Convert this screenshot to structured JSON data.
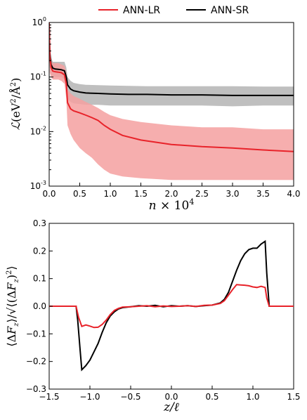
{
  "legend": {
    "placement": "top-center",
    "items": [
      {
        "label": "ANN-LR",
        "color": "#e8232a"
      },
      {
        "label": "ANN-SR",
        "color": "#000000"
      }
    ]
  },
  "chart_data": [
    {
      "type": "line",
      "title": "",
      "xlabel": "n × 10^4",
      "ylabel": "ℒ(eV²/Å²)",
      "xlim": [
        0.0,
        4.0
      ],
      "ylim": [
        0.001,
        1
      ],
      "yscale": "log",
      "xticks": [
        "0.0",
        "0.5",
        "1.0",
        "1.5",
        "2.0",
        "2.5",
        "3.0",
        "3.5",
        "4.0"
      ],
      "yticks": [
        "10^-3",
        "10^-2",
        "10^-1",
        "10^0"
      ],
      "grid": false,
      "series": [
        {
          "name": "ANN-SR",
          "color": "#000000",
          "band_color": "#b8b8b8",
          "x": [
            0.0,
            0.01,
            0.03,
            0.06,
            0.1,
            0.15,
            0.2,
            0.25,
            0.28,
            0.3,
            0.35,
            0.4,
            0.5,
            0.6,
            0.8,
            1.0,
            1.3,
            1.6,
            2.0,
            2.5,
            3.0,
            3.5,
            4.0
          ],
          "values": [
            1.0,
            0.28,
            0.17,
            0.145,
            0.14,
            0.138,
            0.136,
            0.13,
            0.1,
            0.072,
            0.06,
            0.056,
            0.053,
            0.051,
            0.05,
            0.049,
            0.048,
            0.048,
            0.047,
            0.047,
            0.046,
            0.046,
            0.046
          ],
          "band_low": [
            0.9,
            0.16,
            0.11,
            0.1,
            0.1,
            0.1,
            0.1,
            0.09,
            0.06,
            0.04,
            0.035,
            0.033,
            0.032,
            0.031,
            0.031,
            0.03,
            0.03,
            0.03,
            0.03,
            0.03,
            0.029,
            0.03,
            0.03
          ],
          "band_high": [
            1.0,
            0.42,
            0.23,
            0.19,
            0.19,
            0.19,
            0.19,
            0.19,
            0.15,
            0.1,
            0.085,
            0.078,
            0.074,
            0.072,
            0.071,
            0.07,
            0.069,
            0.068,
            0.068,
            0.068,
            0.068,
            0.067,
            0.067
          ]
        },
        {
          "name": "ANN-LR",
          "color": "#e8232a",
          "band_color": "#f4a0a0",
          "x": [
            0.0,
            0.01,
            0.03,
            0.06,
            0.1,
            0.15,
            0.2,
            0.25,
            0.28,
            0.3,
            0.35,
            0.4,
            0.5,
            0.6,
            0.7,
            0.8,
            0.9,
            1.0,
            1.2,
            1.5,
            2.0,
            2.5,
            3.0,
            3.5,
            4.0
          ],
          "values": [
            1.0,
            0.24,
            0.15,
            0.128,
            0.125,
            0.123,
            0.12,
            0.11,
            0.075,
            0.034,
            0.026,
            0.024,
            0.022,
            0.02,
            0.018,
            0.016,
            0.013,
            0.011,
            0.0085,
            0.007,
            0.0058,
            0.0053,
            0.005,
            0.0046,
            0.0043
          ],
          "band_low": [
            0.9,
            0.12,
            0.1,
            0.09,
            0.09,
            0.09,
            0.085,
            0.075,
            0.04,
            0.013,
            0.009,
            0.007,
            0.005,
            0.004,
            0.0033,
            0.0025,
            0.002,
            0.0017,
            0.0015,
            0.0014,
            0.0013,
            0.0013,
            0.0013,
            0.0013,
            0.0013
          ],
          "band_high": [
            1.0,
            0.35,
            0.2,
            0.18,
            0.18,
            0.18,
            0.17,
            0.16,
            0.12,
            0.06,
            0.05,
            0.045,
            0.04,
            0.035,
            0.031,
            0.027,
            0.023,
            0.02,
            0.017,
            0.015,
            0.013,
            0.012,
            0.012,
            0.011,
            0.011
          ]
        }
      ]
    },
    {
      "type": "line",
      "title": "",
      "xlabel": "z/ℓ",
      "ylabel": "⟨ΔFz⟩/√⟨(ΔFz)²⟩",
      "xlim": [
        -1.5,
        1.5
      ],
      "ylim": [
        -0.3,
        0.3
      ],
      "xticks": [
        "−1.5",
        "−1.0",
        "−0.5",
        "0.0",
        "0.5",
        "1.0",
        "1.5"
      ],
      "yticks": [
        "−0.3",
        "−0.2",
        "−0.1",
        "0.0",
        "0.1",
        "0.2",
        "0.3"
      ],
      "grid": false,
      "series": [
        {
          "name": "ANN-SR",
          "color": "#000000",
          "x": [
            -1.5,
            -1.17,
            -1.15,
            -1.12,
            -1.1,
            -1.05,
            -1.0,
            -0.95,
            -0.9,
            -0.85,
            -0.8,
            -0.75,
            -0.7,
            -0.65,
            -0.6,
            -0.5,
            -0.4,
            -0.3,
            -0.2,
            -0.1,
            0.0,
            0.1,
            0.2,
            0.3,
            0.4,
            0.5,
            0.6,
            0.65,
            0.7,
            0.75,
            0.8,
            0.85,
            0.9,
            0.95,
            1.0,
            1.05,
            1.1,
            1.15,
            1.17,
            1.2,
            1.5
          ],
          "values": [
            0.0,
            0.0,
            -0.05,
            -0.16,
            -0.23,
            -0.215,
            -0.195,
            -0.165,
            -0.135,
            -0.095,
            -0.06,
            -0.035,
            -0.02,
            -0.01,
            -0.005,
            -0.002,
            0.002,
            0.0,
            0.003,
            -0.002,
            0.002,
            0.0,
            0.002,
            -0.001,
            0.002,
            0.004,
            0.012,
            0.025,
            0.05,
            0.09,
            0.13,
            0.165,
            0.19,
            0.205,
            0.21,
            0.21,
            0.225,
            0.235,
            0.12,
            0.0,
            0.0
          ]
        },
        {
          "name": "ANN-LR",
          "color": "#e8232a",
          "x": [
            -1.5,
            -1.17,
            -1.14,
            -1.1,
            -1.05,
            -1.0,
            -0.95,
            -0.9,
            -0.85,
            -0.8,
            -0.75,
            -0.7,
            -0.65,
            -0.6,
            -0.5,
            -0.4,
            -0.3,
            -0.2,
            -0.1,
            0.0,
            0.1,
            0.2,
            0.3,
            0.4,
            0.5,
            0.6,
            0.65,
            0.7,
            0.75,
            0.8,
            0.85,
            0.9,
            0.95,
            1.0,
            1.05,
            1.1,
            1.15,
            1.17,
            1.2,
            1.5
          ],
          "values": [
            0.0,
            0.0,
            -0.04,
            -0.073,
            -0.068,
            -0.072,
            -0.077,
            -0.076,
            -0.066,
            -0.05,
            -0.03,
            -0.015,
            -0.008,
            -0.003,
            -0.002,
            0.0,
            0.002,
            -0.002,
            0.001,
            -0.001,
            0.0,
            0.002,
            -0.001,
            0.003,
            0.004,
            0.01,
            0.02,
            0.04,
            0.06,
            0.078,
            0.077,
            0.076,
            0.074,
            0.07,
            0.068,
            0.072,
            0.068,
            0.03,
            0.0,
            0.0
          ]
        }
      ]
    }
  ]
}
